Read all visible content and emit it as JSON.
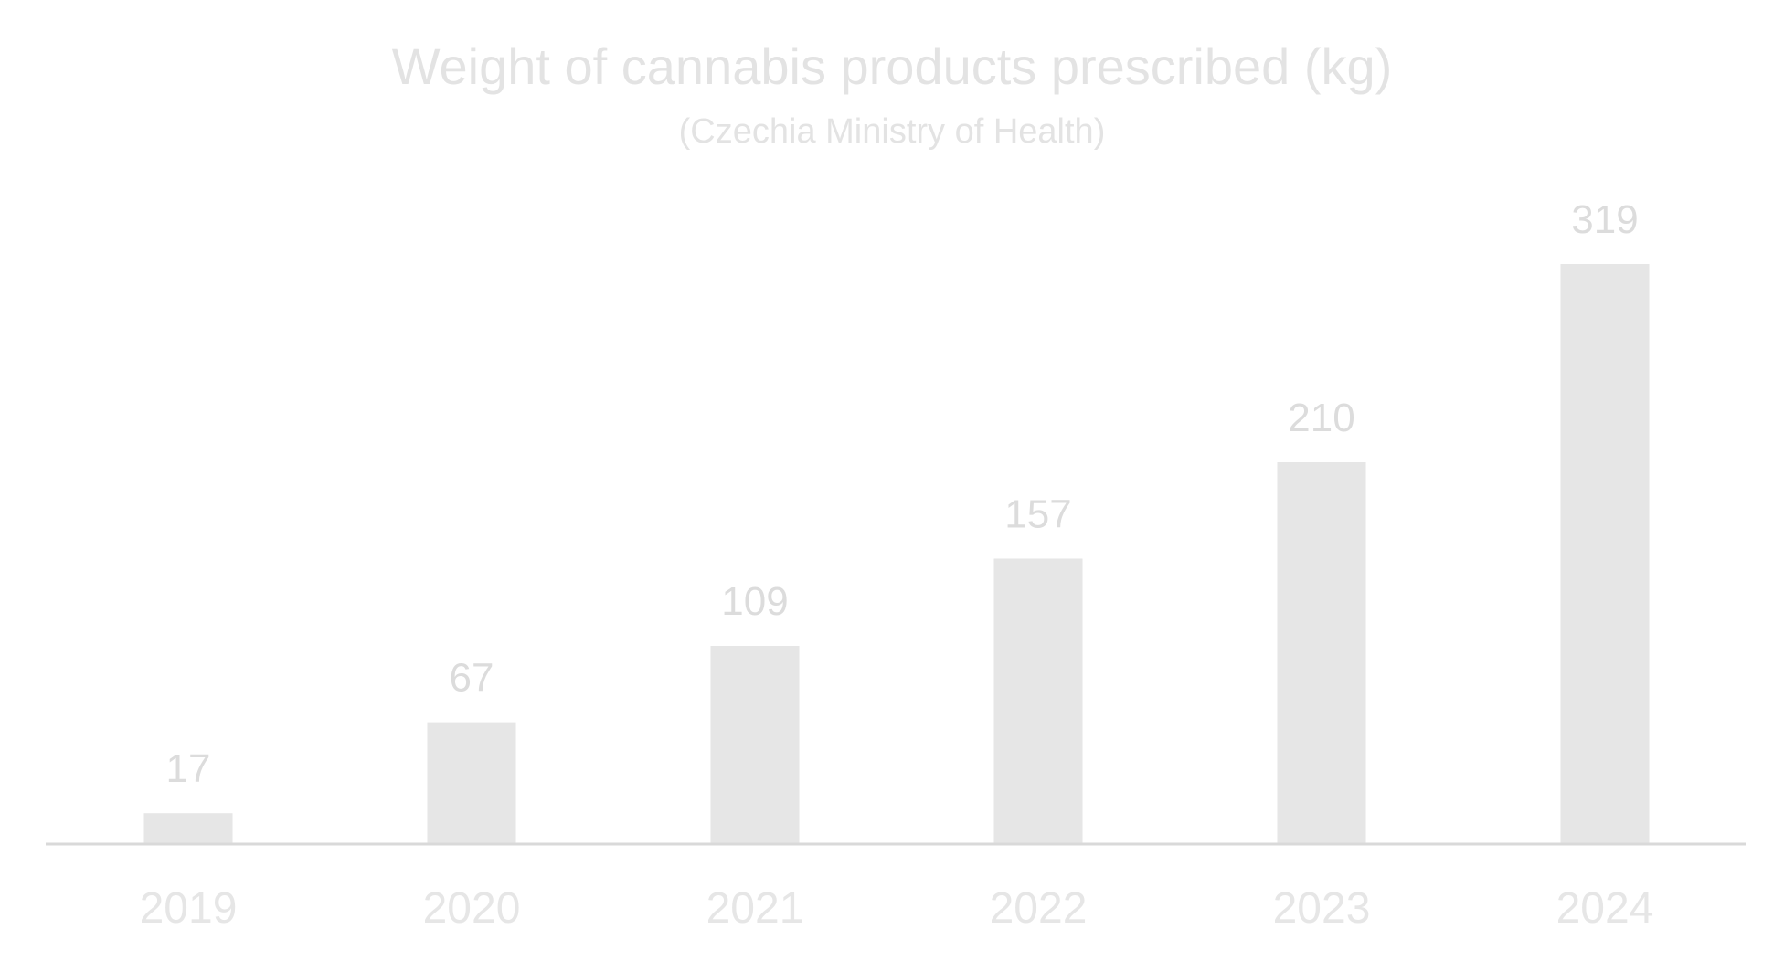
{
  "chart_data": {
    "type": "bar",
    "title": "Weight of cannabis products prescribed (kg)",
    "subtitle": "(Czechia Ministry of Health)",
    "categories": [
      "2019",
      "2020",
      "2021",
      "2022",
      "2023",
      "2024"
    ],
    "values": [
      17,
      67,
      109,
      157,
      210,
      319
    ],
    "data_labels": [
      "17",
      "67",
      "109",
      "157",
      "210",
      "319"
    ],
    "xlabel": "",
    "ylabel": "",
    "ylim": [
      0,
      319
    ],
    "grid": false,
    "legend": "none",
    "colors": {
      "bar": "#e6e6e6",
      "axis": "#d9d9d9",
      "text": "#e3e3e3"
    }
  }
}
